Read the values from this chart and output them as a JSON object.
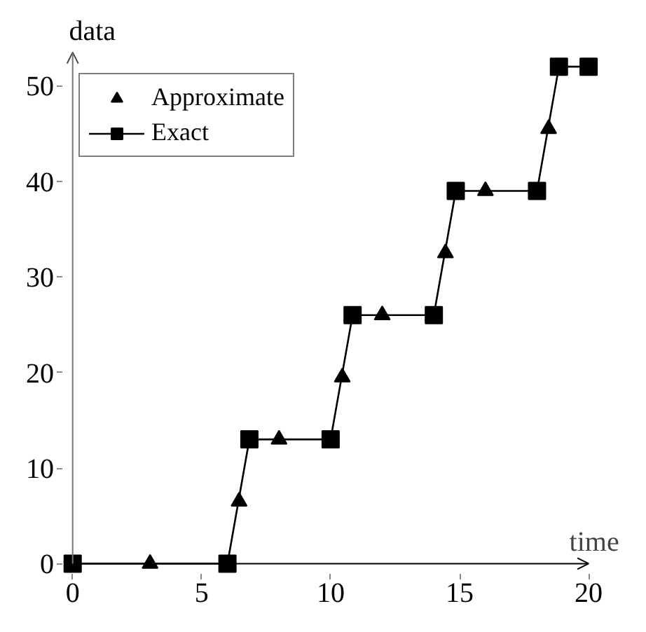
{
  "chart_data": {
    "type": "line",
    "xlabel": "time",
    "ylabel": "data",
    "xlim": [
      0,
      20
    ],
    "ylim": [
      0,
      53.5
    ],
    "xticks": [
      0,
      5,
      10,
      15,
      20
    ],
    "yticks": [
      0,
      10,
      20,
      30,
      40,
      50
    ],
    "series": [
      {
        "name": "Approximate",
        "type": "scatter",
        "color": "#000000",
        "marker": "triangle",
        "x": [
          3,
          6.45,
          8,
          10.45,
          12,
          14.45,
          16,
          18.45
        ],
        "values": [
          0,
          6.5,
          13,
          19.5,
          26,
          32.5,
          39,
          45.5
        ]
      },
      {
        "name": "Exact",
        "color": "#000000",
        "marker": "square",
        "x": [
          0,
          6,
          6.85,
          10,
          10.85,
          14,
          14.85,
          18,
          18.85,
          20
        ],
        "values": [
          0,
          0,
          13,
          13,
          26,
          26,
          39,
          39,
          52,
          52
        ]
      }
    ],
    "legend": "top left",
    "grid": false
  }
}
